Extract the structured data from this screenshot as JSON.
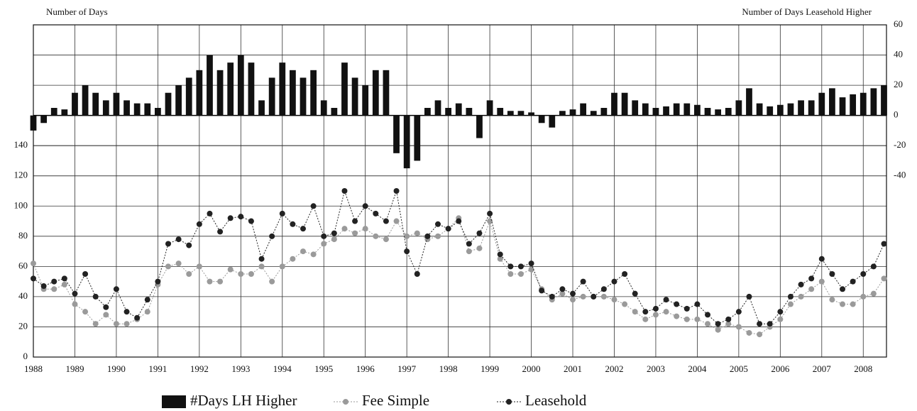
{
  "chart_data": {
    "type": "combo",
    "y_label": "Number of Days",
    "y2_label": "Number of Days Leasehold Higher",
    "x": [
      1988,
      1988.25,
      1988.5,
      1988.75,
      1989,
      1989.25,
      1989.5,
      1989.75,
      1990,
      1990.25,
      1990.5,
      1990.75,
      1991,
      1991.25,
      1991.5,
      1991.75,
      1992,
      1992.25,
      1992.5,
      1992.75,
      1993,
      1993.25,
      1993.5,
      1993.75,
      1994,
      1994.25,
      1994.5,
      1994.75,
      1995,
      1995.25,
      1995.5,
      1995.75,
      1996,
      1996.25,
      1996.5,
      1996.75,
      1997,
      1997.25,
      1997.5,
      1997.75,
      1998,
      1998.25,
      1998.5,
      1998.75,
      1999,
      1999.25,
      1999.5,
      1999.75,
      2000,
      2000.25,
      2000.5,
      2000.75,
      2001,
      2001.25,
      2001.5,
      2001.75,
      2002,
      2002.25,
      2002.5,
      2002.75,
      2003,
      2003.25,
      2003.5,
      2003.75,
      2004,
      2004.25,
      2004.5,
      2004.75,
      2005,
      2005.25,
      2005.5,
      2005.75,
      2006,
      2006.25,
      2006.5,
      2006.75,
      2007,
      2007.25,
      2007.5,
      2007.75,
      2008,
      2008.25,
      2008.5
    ],
    "series": [
      {
        "name": "#Days LH Higher",
        "type": "bar",
        "axis": "y2",
        "color": "#111111",
        "values": [
          -10,
          -5,
          5,
          4,
          15,
          20,
          15,
          10,
          15,
          10,
          8,
          8,
          5,
          15,
          20,
          25,
          30,
          40,
          30,
          35,
          40,
          35,
          10,
          25,
          35,
          30,
          25,
          30,
          10,
          5,
          35,
          25,
          20,
          30,
          30,
          -25,
          -35,
          -30,
          5,
          10,
          5,
          8,
          5,
          -15,
          10,
          5,
          3,
          3,
          2,
          -5,
          -8,
          3,
          4,
          8,
          3,
          5,
          15,
          15,
          10,
          8,
          5,
          6,
          8,
          8,
          7,
          5,
          4,
          5,
          10,
          18,
          8,
          6,
          7,
          8,
          10,
          10,
          15,
          18,
          12,
          14,
          15,
          18,
          20
        ]
      },
      {
        "name": "Fee Simple",
        "type": "line",
        "color": "#9a9a9a",
        "values": [
          62,
          45,
          45,
          48,
          35,
          30,
          22,
          28,
          22,
          22,
          25,
          30,
          48,
          60,
          62,
          55,
          60,
          50,
          50,
          58,
          55,
          55,
          60,
          50,
          60,
          65,
          70,
          68,
          75,
          78,
          85,
          82,
          85,
          80,
          78,
          90,
          80,
          82,
          78,
          80,
          85,
          92,
          70,
          72,
          90,
          65,
          55,
          55,
          58,
          45,
          38,
          42,
          38,
          40,
          40,
          40,
          38,
          35,
          30,
          25,
          28,
          30,
          27,
          25,
          25,
          22,
          18,
          22,
          20,
          16,
          15,
          20,
          25,
          35,
          40,
          45,
          50,
          38,
          35,
          35,
          40,
          42,
          52
        ]
      },
      {
        "name": "Leasehold",
        "type": "line",
        "color": "#222222",
        "values": [
          52,
          47,
          50,
          52,
          42,
          55,
          40,
          33,
          45,
          30,
          26,
          38,
          50,
          75,
          78,
          74,
          88,
          95,
          83,
          92,
          93,
          90,
          65,
          80,
          95,
          88,
          85,
          100,
          80,
          82,
          110,
          90,
          100,
          95,
          90,
          110,
          70,
          55,
          80,
          88,
          85,
          90,
          75,
          82,
          95,
          68,
          60,
          60,
          62,
          44,
          40,
          45,
          42,
          50,
          40,
          45,
          50,
          55,
          42,
          30,
          32,
          38,
          35,
          32,
          35,
          28,
          22,
          25,
          30,
          40,
          22,
          22,
          30,
          40,
          48,
          52,
          65,
          55,
          45,
          50,
          55,
          60,
          75
        ]
      }
    ],
    "xlim": [
      1988,
      2008.56
    ],
    "xticks": [
      1988,
      1989,
      1990,
      1991,
      1992,
      1993,
      1994,
      1995,
      1996,
      1997,
      1998,
      1999,
      2000,
      2001,
      2002,
      2003,
      2004,
      2005,
      2006,
      2007,
      2008
    ],
    "ylim": [
      0,
      220
    ],
    "yticks": [
      0,
      20,
      40,
      60,
      80,
      100,
      120,
      140
    ],
    "y2lim": [
      -160,
      60
    ],
    "y2ticks": [
      -40,
      -20,
      0,
      20,
      40,
      60
    ],
    "grid": true,
    "legend": "bottom"
  }
}
